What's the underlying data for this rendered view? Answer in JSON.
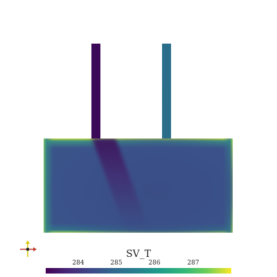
{
  "colorbar": {
    "title": "SV_T",
    "ticks": [
      "284",
      "285",
      "286",
      "287"
    ],
    "colormap": "viridis"
  },
  "colors": {
    "background": "#ffffff",
    "pipe_left": "#3a0a58",
    "pipe_right": "#2a6d8b",
    "tank_core": "#39548a"
  },
  "icons": {
    "orientation": "axes-orientation-icon"
  }
}
